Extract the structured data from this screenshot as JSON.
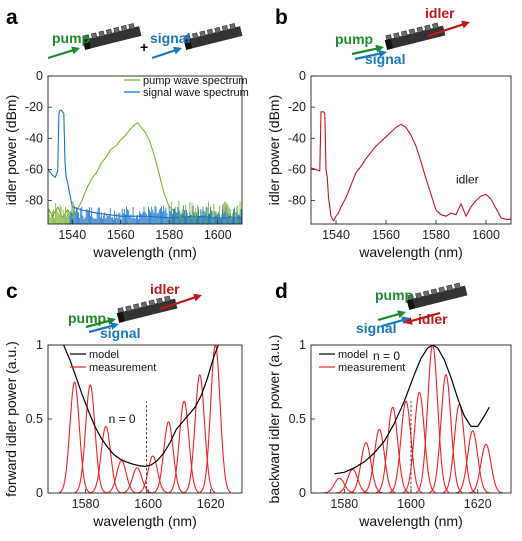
{
  "colors": {
    "pump": "#1e8a2e",
    "signal": "#1878c0",
    "idler": "#c0161c",
    "pump_spectrum": "#7ab32e",
    "signal_spectrum": "#1672c4",
    "measurement": "#ee2222",
    "model": "#000000",
    "waveguide": "#333333"
  },
  "panels": [
    {
      "id": "a",
      "letter": "a",
      "beams": [
        {
          "text": "pump",
          "color": "pump"
        },
        {
          "text": "+",
          "color": "model"
        },
        {
          "text": "signal",
          "color": "signal"
        }
      ],
      "chart_data": {
        "type": "line",
        "xlabel": "wavelength (nm)",
        "ylabel": "idler power (dBm)",
        "xlim": [
          1530,
          1610
        ],
        "ylim": [
          -95,
          0
        ],
        "xticks": [
          1540,
          1560,
          1580,
          1600
        ],
        "yticks": [
          -80,
          -60,
          -40,
          -20,
          0
        ],
        "xtick_labels": [
          "1540",
          "1560",
          "1580",
          "1600"
        ],
        "ytick_labels": [
          "-80",
          "-60",
          "-40",
          "-20",
          "0"
        ],
        "legend_position": "top-right",
        "series": [
          {
            "name": "pump wave spectrum",
            "color": "pump_spectrum",
            "x": [
              1530,
              1532,
              1534,
              1536,
              1538,
              1540,
              1542,
              1544,
              1546,
              1548,
              1550,
              1552,
              1554,
              1556,
              1558,
              1560,
              1562,
              1564,
              1566,
              1567,
              1568,
              1570,
              1572,
              1574,
              1576,
              1578,
              1580,
              1583,
              1586,
              1590,
              1595,
              1600,
              1605,
              1610
            ],
            "y": [
              -85,
              -90,
              -84,
              -91,
              -86,
              -90,
              -86,
              -80,
              -72,
              -66,
              -62,
              -56,
              -52,
              -47,
              -45,
              -41,
              -38,
              -34,
              -31,
              -30,
              -32,
              -36,
              -42,
              -52,
              -64,
              -76,
              -84,
              -88,
              -90,
              -91,
              -90,
              -92,
              -90,
              -92
            ]
          },
          {
            "name": "signal wave spectrum",
            "color": "signal_spectrum",
            "x": [
              1530,
              1531,
              1532,
              1533,
              1534,
              1534.5,
              1535,
              1535.5,
              1536,
              1536.5,
              1537,
              1537.5,
              1538,
              1540,
              1544,
              1550,
              1560,
              1570,
              1580,
              1590,
              1600,
              1610
            ],
            "y": [
              -60,
              -62,
              -64,
              -65,
              -61,
              -24,
              -22,
              -22,
              -23,
              -24,
              -55,
              -65,
              -68,
              -84,
              -86,
              -88,
              -90,
              -90,
              -91,
              -90,
              -91,
              -91
            ]
          }
        ]
      }
    },
    {
      "id": "b",
      "letter": "b",
      "beams": [
        {
          "text": "idler",
          "color": "idler"
        },
        {
          "text": "pump",
          "color": "pump"
        },
        {
          "text": "signal",
          "color": "signal"
        }
      ],
      "chart_data": {
        "type": "line",
        "xlabel": "wavelength (nm)",
        "ylabel": "idler power (dBm)",
        "xlim": [
          1530,
          1610
        ],
        "ylim": [
          -95,
          0
        ],
        "xticks": [
          1540,
          1560,
          1580,
          1600
        ],
        "yticks": [
          -80,
          -60,
          -40,
          -20,
          0
        ],
        "xtick_labels": [
          "1540",
          "1560",
          "1580",
          "1600"
        ],
        "ytick_labels": [
          "-80",
          "-60",
          "-40",
          "-20",
          "0"
        ],
        "annotations": [
          {
            "text": "idler",
            "x": 1596,
            "y": -69
          }
        ],
        "series": [
          {
            "color": "idler",
            "x": [
              1530,
              1532,
              1533.5,
              1534,
              1534.5,
              1535,
              1535.5,
              1536,
              1536.5,
              1537,
              1537.5,
              1538,
              1539,
              1540,
              1541,
              1542,
              1544,
              1546,
              1548,
              1550,
              1552,
              1554,
              1556,
              1558,
              1560,
              1562,
              1564,
              1566,
              1568,
              1570,
              1572,
              1574,
              1576,
              1578,
              1580,
              1582,
              1584,
              1586,
              1588,
              1590,
              1592,
              1594,
              1596,
              1598,
              1600,
              1602,
              1604,
              1606,
              1608,
              1610
            ],
            "y": [
              -59,
              -60,
              -61,
              -23,
              -23,
              -23,
              -24,
              -60,
              -65,
              -78,
              -84,
              -90,
              -93,
              -90,
              -88,
              -84,
              -78,
              -70,
              -62,
              -58,
              -53,
              -49,
              -45,
              -42,
              -39,
              -36,
              -33,
              -31,
              -33,
              -38,
              -45,
              -55,
              -66,
              -76,
              -86,
              -89,
              -90,
              -88,
              -89,
              -82,
              -90,
              -84,
              -80,
              -77,
              -76,
              -79,
              -85,
              -91,
              -92,
              -92
            ]
          }
        ]
      }
    },
    {
      "id": "c",
      "letter": "c",
      "beams": [
        {
          "text": "idler",
          "color": "idler"
        },
        {
          "text": "pump",
          "color": "pump"
        },
        {
          "text": "signal",
          "color": "signal"
        }
      ],
      "chart_data": {
        "type": "line",
        "xlabel": "wavelength (nm)",
        "ylabel": "forward idler power (a.u.)",
        "xlim": [
          1568,
          1630
        ],
        "ylim": [
          0,
          1
        ],
        "xticks": [
          1580,
          1600,
          1620
        ],
        "yticks": [
          0,
          0.5,
          1
        ],
        "xtick_labels": [
          "1580",
          "1600",
          "1620"
        ],
        "ytick_labels": [
          "0",
          "0.5",
          "1"
        ],
        "legend_position": "top-left",
        "vline": {
          "x": 1599.5,
          "label": "n = 0"
        },
        "model": {
          "name": "model",
          "x": [
            1573,
            1575,
            1577,
            1579,
            1581,
            1583,
            1585,
            1587,
            1589,
            1591,
            1593,
            1595,
            1597,
            1599,
            1601,
            1603,
            1605,
            1607,
            1609,
            1611,
            1613,
            1615,
            1617,
            1619,
            1621,
            1623
          ],
          "y": [
            1.0,
            0.9,
            0.78,
            0.66,
            0.55,
            0.45,
            0.37,
            0.31,
            0.26,
            0.23,
            0.21,
            0.195,
            0.185,
            0.18,
            0.19,
            0.22,
            0.27,
            0.34,
            0.43,
            0.48,
            0.53,
            0.58,
            0.66,
            0.78,
            0.92,
            1.03
          ]
        },
        "measurement": {
          "name": "measurement",
          "peaks": [
            {
              "center": 1576.5,
              "amp": 0.75,
              "width": 1.5
            },
            {
              "center": 1581.5,
              "amp": 0.73,
              "width": 1.5
            },
            {
              "center": 1586.5,
              "amp": 0.45,
              "width": 1.5
            },
            {
              "center": 1591.5,
              "amp": 0.22,
              "width": 1.5
            },
            {
              "center": 1596.5,
              "amp": 0.17,
              "width": 1.5
            },
            {
              "center": 1601.5,
              "amp": 0.25,
              "width": 1.5
            },
            {
              "center": 1606.5,
              "amp": 0.48,
              "width": 1.5
            },
            {
              "center": 1611.5,
              "amp": 0.62,
              "width": 1.5
            },
            {
              "center": 1616.5,
              "amp": 0.8,
              "width": 1.5
            },
            {
              "center": 1621.5,
              "amp": 1.0,
              "width": 1.5
            }
          ]
        }
      }
    },
    {
      "id": "d",
      "letter": "d",
      "beams": [
        {
          "text": "pump",
          "color": "pump"
        },
        {
          "text": "signal",
          "color": "signal"
        },
        {
          "text": "idler",
          "color": "idler"
        }
      ],
      "chart_data": {
        "type": "line",
        "xlabel": "wavelength (nm)",
        "ylabel": "backward idler power (a.u.)",
        "xlim": [
          1570,
          1630
        ],
        "ylim": [
          0,
          1
        ],
        "xticks": [
          1580,
          1600,
          1620
        ],
        "yticks": [
          0,
          0.5,
          1
        ],
        "xtick_labels": [
          "1580",
          "1600",
          "1620"
        ],
        "ytick_labels": [
          "0",
          "0.5",
          "1"
        ],
        "legend_position": "top-left",
        "vline": {
          "x": 1600,
          "label": "n = 0"
        },
        "model": {
          "name": "model",
          "x": [
            1577,
            1580,
            1583,
            1586,
            1589,
            1592,
            1595,
            1598,
            1601,
            1603,
            1605,
            1606.5,
            1608,
            1610,
            1612,
            1614,
            1616,
            1618,
            1620,
            1622,
            1623.5
          ],
          "y": [
            0.13,
            0.14,
            0.17,
            0.21,
            0.27,
            0.35,
            0.47,
            0.62,
            0.8,
            0.91,
            0.98,
            1.0,
            0.98,
            0.9,
            0.78,
            0.64,
            0.52,
            0.45,
            0.45,
            0.52,
            0.58
          ]
        },
        "measurement": {
          "name": "measurement",
          "peaks": [
            {
              "center": 1578.5,
              "amp": 0.1,
              "width": 1.5
            },
            {
              "center": 1582.5,
              "amp": 0.16,
              "width": 1.5
            },
            {
              "center": 1586.5,
              "amp": 0.34,
              "width": 1.5
            },
            {
              "center": 1590.5,
              "amp": 0.43,
              "width": 1.5
            },
            {
              "center": 1594.5,
              "amp": 0.58,
              "width": 1.5
            },
            {
              "center": 1598.5,
              "amp": 0.62,
              "width": 1.5
            },
            {
              "center": 1602.5,
              "amp": 0.68,
              "width": 1.5
            },
            {
              "center": 1606.5,
              "amp": 1.0,
              "width": 1.5
            },
            {
              "center": 1610.5,
              "amp": 0.8,
              "width": 1.5
            },
            {
              "center": 1614.5,
              "amp": 0.6,
              "width": 1.5
            },
            {
              "center": 1618.5,
              "amp": 0.42,
              "width": 1.5
            },
            {
              "center": 1622.5,
              "amp": 0.33,
              "width": 1.5
            }
          ]
        }
      }
    }
  ]
}
